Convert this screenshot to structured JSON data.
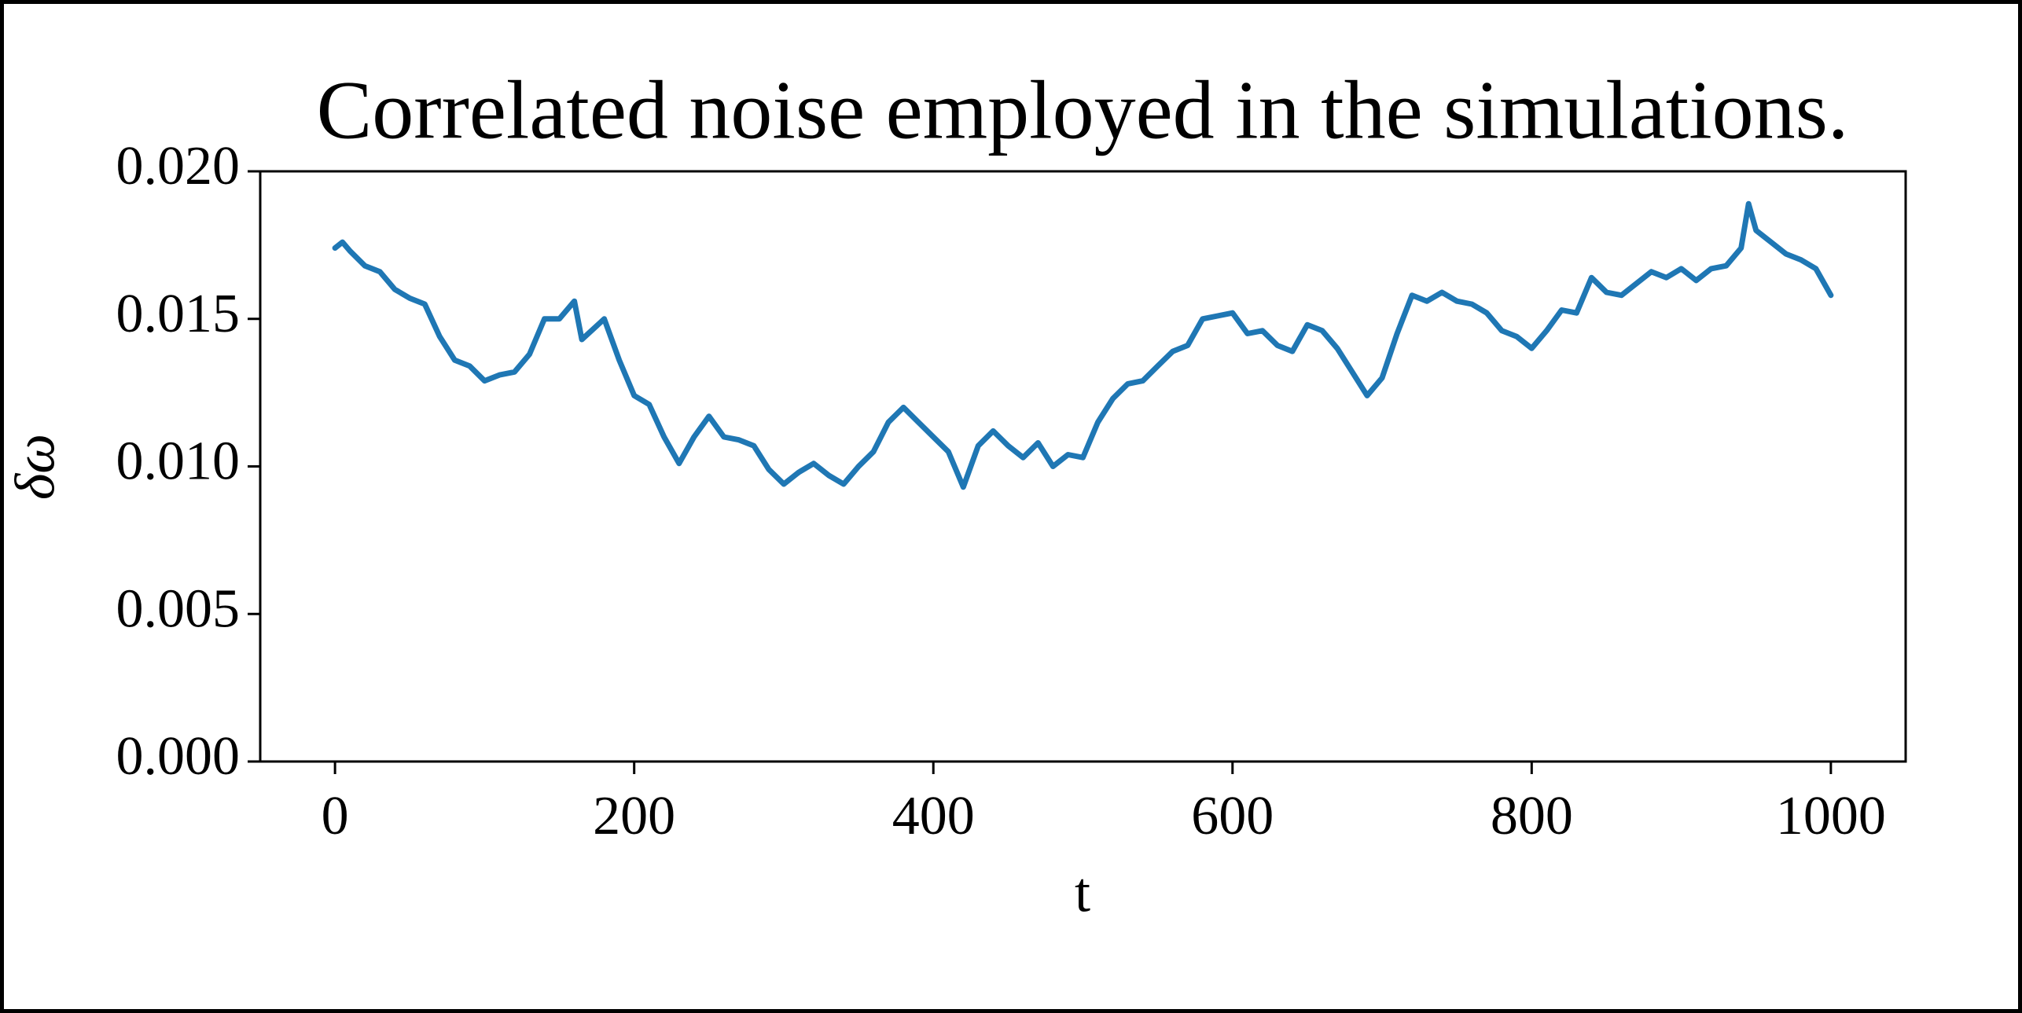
{
  "chart_data": {
    "type": "line",
    "title": "Correlated noise employed in the simulations.",
    "xlabel": "t",
    "ylabel": "δω",
    "x": [
      0,
      5,
      10,
      20,
      30,
      40,
      50,
      60,
      70,
      80,
      90,
      100,
      110,
      120,
      130,
      140,
      150,
      160,
      165,
      180,
      190,
      200,
      210,
      220,
      230,
      240,
      250,
      260,
      270,
      280,
      290,
      300,
      310,
      320,
      330,
      340,
      350,
      360,
      370,
      380,
      390,
      400,
      410,
      420,
      430,
      440,
      450,
      460,
      470,
      480,
      490,
      500,
      510,
      520,
      530,
      540,
      550,
      560,
      570,
      580,
      590,
      600,
      610,
      620,
      630,
      640,
      650,
      660,
      670,
      680,
      690,
      700,
      710,
      720,
      730,
      740,
      750,
      760,
      770,
      780,
      790,
      800,
      810,
      820,
      830,
      840,
      850,
      860,
      870,
      880,
      890,
      900,
      910,
      920,
      930,
      940,
      945,
      950,
      960,
      970,
      980,
      990,
      1000
    ],
    "values": [
      0.0174,
      0.0176,
      0.0173,
      0.0168,
      0.0166,
      0.016,
      0.0157,
      0.0155,
      0.0144,
      0.0136,
      0.0134,
      0.0129,
      0.0131,
      0.0132,
      0.0138,
      0.015,
      0.015,
      0.0156,
      0.0143,
      0.015,
      0.0136,
      0.0124,
      0.0121,
      0.011,
      0.0101,
      0.011,
      0.0117,
      0.011,
      0.0109,
      0.0107,
      0.0099,
      0.0094,
      0.0098,
      0.0101,
      0.0097,
      0.0094,
      0.01,
      0.0105,
      0.0115,
      0.012,
      0.0115,
      0.011,
      0.0105,
      0.0093,
      0.0107,
      0.0112,
      0.0107,
      0.0103,
      0.0108,
      0.01,
      0.0104,
      0.0103,
      0.0115,
      0.0123,
      0.0128,
      0.0129,
      0.0134,
      0.0139,
      0.0141,
      0.015,
      0.0151,
      0.0152,
      0.0145,
      0.0146,
      0.0141,
      0.0139,
      0.0148,
      0.0146,
      0.014,
      0.0132,
      0.0124,
      0.013,
      0.0145,
      0.0158,
      0.0156,
      0.0159,
      0.0156,
      0.0155,
      0.0152,
      0.0146,
      0.0144,
      0.014,
      0.0146,
      0.0153,
      0.0152,
      0.0164,
      0.0159,
      0.0158,
      0.0162,
      0.0166,
      0.0164,
      0.0167,
      0.0163,
      0.0167,
      0.0168,
      0.0174,
      0.0189,
      0.018,
      0.0176,
      0.0172,
      0.017,
      0.0167,
      0.0158
    ],
    "color": "#1f77b4",
    "xlim": [
      -50,
      1050
    ],
    "xticks": [
      0,
      200,
      400,
      600,
      800,
      1000
    ],
    "ylim": [
      0,
      0.02
    ],
    "yticks": [
      {
        "value": 0,
        "label": "0.000"
      },
      {
        "value": 0.005,
        "label": "0.005"
      },
      {
        "value": 0.01,
        "label": "0.010"
      },
      {
        "value": 0.015,
        "label": "0.015"
      },
      {
        "value": 0.02,
        "label": "0.020"
      }
    ]
  }
}
